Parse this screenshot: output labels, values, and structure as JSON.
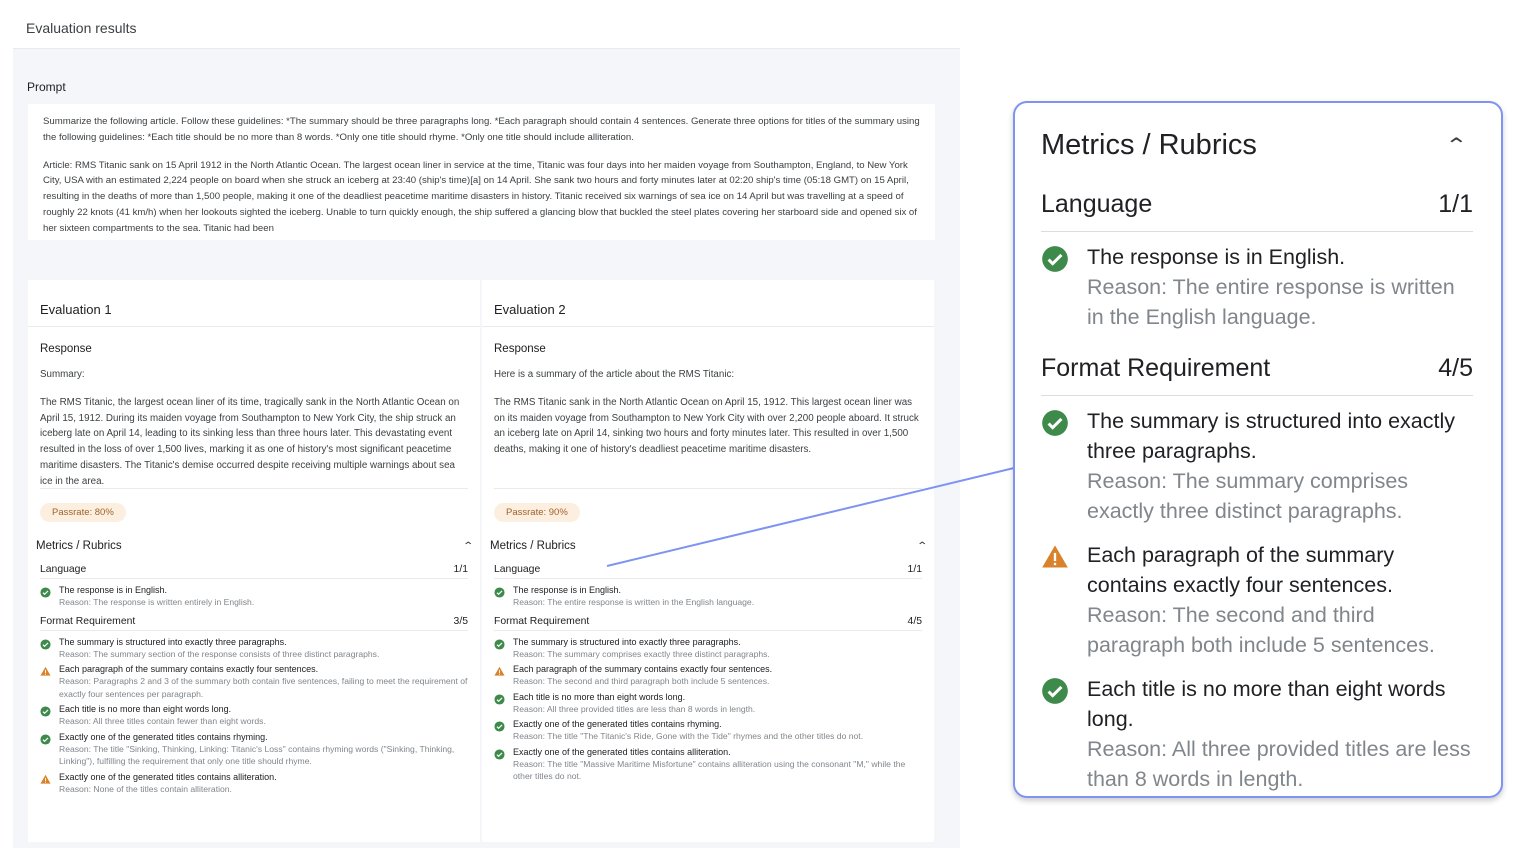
{
  "app": {
    "title": "Evaluation results"
  },
  "prompt": {
    "label": "Prompt",
    "paragraphs": [
      "Summarize the following article. Follow these guidelines: *The summary should be three paragraphs long. *Each paragraph should contain 4 sentences. Generate three options for titles of the summary using the following guidelines: *Each title should be no more than 8 words. *Only one title should rhyme. *Only one title should include alliteration.",
      "Article: RMS Titanic sank on 15 April 1912 in the North Atlantic Ocean. The largest ocean liner in service at the time, Titanic was four days into her maiden voyage from Southampton, England, to New York City, USA with an estimated 2,224 people on board when she struck an iceberg at 23:40 (ship's time)[a] on 14 April. She sank two hours and forty minutes later at 02:20 ship's time (05:18 GMT) on 15 April, resulting in the deaths of more than 1,500 people, making it one of the deadliest peacetime maritime disasters in history. Titanic received six warnings of sea ice on 14 April but was travelling at a speed of roughly 22 knots (41 km/h) when her lookouts sighted the iceberg. Unable to turn quickly enough, the ship suffered a glancing blow that buckled the steel plates covering her starboard side and opened six of her sixteen compartments to the sea. Titanic had been"
    ]
  },
  "colors": {
    "pass": "#3d8a4a",
    "warn": "#d9822b",
    "callout_border": "#7e93f2"
  },
  "evaluations": [
    {
      "title": "Evaluation 1",
      "response_label": "Response",
      "response": [
        "Summary:",
        "The RMS Titanic, the largest ocean liner of its time, tragically sank in the North Atlantic Ocean on April 15, 1912. During its maiden voyage from Southampton to New York City, the ship struck an iceberg late on April 14, leading to its sinking less than three hours later. This devastating event resulted in the loss of over 1,500 lives, marking it as one of history's most significant peacetime maritime disasters. The Titanic's demise occurred despite receiving multiple warnings about sea ice in the area."
      ],
      "passrate": "Passrate: 80%",
      "metrics": {
        "title": "Metrics / Rubrics",
        "categories": [
          {
            "name": "Language",
            "score": "1/1",
            "items": [
              {
                "status": "pass",
                "title": "The response is in English.",
                "reason": "Reason: The response is written entirely in English."
              }
            ]
          },
          {
            "name": "Format Requirement",
            "score": "3/5",
            "items": [
              {
                "status": "pass",
                "title": "The summary is structured into exactly three paragraphs.",
                "reason": "Reason: The summary section of the response consists of three distinct paragraphs."
              },
              {
                "status": "warn",
                "title": "Each paragraph of the summary contains exactly four sentences.",
                "reason": "Reason: Paragraphs 2 and 3 of the summary both contain five sentences, failing to meet the requirement of exactly four sentences per paragraph."
              },
              {
                "status": "pass",
                "title": "Each title is no more than eight words long.",
                "reason": "Reason: All three titles contain fewer than eight words."
              },
              {
                "status": "pass",
                "title": "Exactly one of the generated titles contains rhyming.",
                "reason": "Reason: The title \"Sinking, Thinking, Linking: Titanic's Loss\" contains rhyming words (\"Sinking, Thinking, Linking\"), fulfilling the requirement that only one title should rhyme."
              },
              {
                "status": "warn",
                "title": "Exactly one of the generated titles contains alliteration.",
                "reason": "Reason: None of the titles contain alliteration."
              }
            ]
          }
        ]
      }
    },
    {
      "title": "Evaluation 2",
      "response_label": "Response",
      "response": [
        "Here is a summary of the article about the RMS Titanic:",
        "The RMS Titanic sank in the North Atlantic Ocean on April 15, 1912. This largest ocean liner was on its maiden voyage from Southampton to New York City with over 2,200 people aboard. It struck an iceberg late on April 14, sinking two hours and forty minutes later. This resulted in over 1,500 deaths, making it one of history's deadliest peacetime maritime disasters."
      ],
      "passrate": "Passrate: 90%",
      "metrics": {
        "title": "Metrics / Rubrics",
        "categories": [
          {
            "name": "Language",
            "score": "1/1",
            "items": [
              {
                "status": "pass",
                "title": "The response is in English.",
                "reason": "Reason: The entire response is written in the English language."
              }
            ]
          },
          {
            "name": "Format Requirement",
            "score": "4/5",
            "items": [
              {
                "status": "pass",
                "title": "The summary is structured into exactly three paragraphs.",
                "reason": "Reason: The summary comprises exactly three distinct paragraphs."
              },
              {
                "status": "warn",
                "title": "Each paragraph of the summary contains exactly four sentences.",
                "reason": "Reason: The second and third paragraph both include 5 sentences."
              },
              {
                "status": "pass",
                "title": "Each title is no more than eight words long.",
                "reason": "Reason: All three provided titles are less than 8 words in length."
              },
              {
                "status": "pass",
                "title": "Exactly one of the generated titles contains rhyming.",
                "reason": "Reason: The title \"The Titanic's Ride, Gone with the Tide\" rhymes and the other titles do not."
              },
              {
                "status": "pass",
                "title": "Exactly one of the generated titles contains alliteration.",
                "reason": "Reason: The title \"Massive Maritime Misfortune\" contains alliteration using the consonant \"M,\" while the other titles do not."
              }
            ]
          }
        ]
      }
    }
  ],
  "callout": {
    "title": "Metrics / Rubrics",
    "categories": [
      {
        "name": "Language",
        "score": "1/1",
        "items": [
          {
            "status": "pass",
            "title": "The response is in English.",
            "reason": "Reason: The entire response is written in the English language."
          }
        ]
      },
      {
        "name": "Format Requirement",
        "score": "4/5",
        "items": [
          {
            "status": "pass",
            "title": "The summary is structured into exactly three paragraphs.",
            "reason": "Reason: The summary comprises exactly three distinct paragraphs."
          },
          {
            "status": "warn",
            "title": "Each paragraph of the summary contains exactly four sentences.",
            "reason": "Reason: The second and third paragraph both include 5 sentences."
          },
          {
            "status": "pass",
            "title": "Each title is no more than eight words long.",
            "reason": "Reason: All three provided titles are less than 8 words in length."
          }
        ]
      }
    ]
  }
}
